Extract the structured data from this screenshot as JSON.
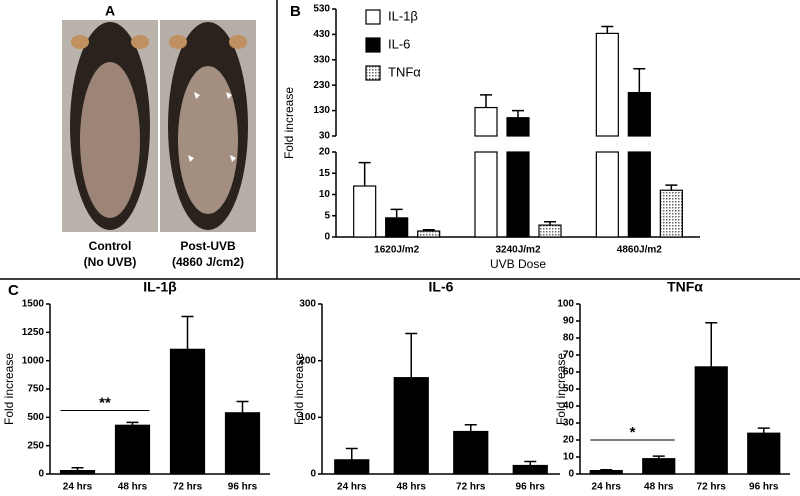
{
  "panel_a": {
    "label": "A",
    "images": [
      {
        "caption": [
          "Control",
          "(No UVB)"
        ]
      },
      {
        "caption": [
          "Post-UVB",
          "(4860 J/cm2)"
        ]
      }
    ]
  },
  "chart_data": [
    {
      "type": "bar",
      "panel_label": "B",
      "xlabel": "UVB Dose",
      "ylabel": "Fold increase",
      "categories": [
        "1620J/m2",
        "3240J/m2",
        "4860J/m2"
      ],
      "series": [
        {
          "name": "IL-1β",
          "color": "#ffffff",
          "values": [
            12,
            142,
            434
          ],
          "errors": [
            5.5,
            50,
            27
          ]
        },
        {
          "name": "IL-6",
          "color": "#000000",
          "values": [
            4.5,
            102,
            201
          ],
          "errors": [
            2,
            28,
            94
          ]
        },
        {
          "name": "TNFα",
          "color": "#d8d8d8",
          "pattern": "dots",
          "values": [
            1.4,
            2.8,
            11
          ],
          "errors": [
            0.3,
            0.8,
            1.2
          ]
        }
      ],
      "ylim": [
        0,
        530
      ],
      "ybreak": [
        20,
        30
      ],
      "yticks": [
        0,
        5,
        10,
        15,
        20,
        30,
        130,
        230,
        330,
        430,
        530
      ],
      "legend": "upper left"
    },
    {
      "type": "bar",
      "panel_label": "C",
      "title": "IL-1β",
      "ylabel": "Fold increase",
      "categories": [
        "24 hrs",
        "48 hrs",
        "72 hrs",
        "96 hrs"
      ],
      "color": "#000000",
      "values": [
        30,
        430,
        1100,
        540
      ],
      "errors": [
        25,
        25,
        290,
        100
      ],
      "ylim": [
        0,
        1500
      ],
      "yticks": [
        0,
        250,
        500,
        750,
        1000,
        1250,
        1500
      ],
      "annotations": [
        {
          "text": "**",
          "from": 0,
          "to": 1,
          "y": 560
        }
      ]
    },
    {
      "type": "bar",
      "title": "IL-6",
      "ylabel": "Fold increase",
      "categories": [
        "24 hrs",
        "48 hrs",
        "72 hrs",
        "96 hrs"
      ],
      "color": "#000000",
      "values": [
        25,
        170,
        75,
        15
      ],
      "errors": [
        20,
        78,
        12,
        7
      ],
      "ylim": [
        0,
        300
      ],
      "yticks": [
        0,
        100,
        200,
        300
      ]
    },
    {
      "type": "bar",
      "title": "TNFα",
      "ylabel": "Fold increase",
      "categories": [
        "24 hrs",
        "48 hrs",
        "72 hrs",
        "96 hrs"
      ],
      "color": "#000000",
      "values": [
        2,
        9,
        63,
        24
      ],
      "errors": [
        0.5,
        1.5,
        26,
        3
      ],
      "ylim": [
        0,
        100
      ],
      "yticks": [
        0,
        10,
        20,
        30,
        40,
        50,
        60,
        70,
        80,
        90,
        100
      ],
      "annotations": [
        {
          "text": "*",
          "from": 0,
          "to": 1,
          "y": 20
        }
      ]
    }
  ]
}
